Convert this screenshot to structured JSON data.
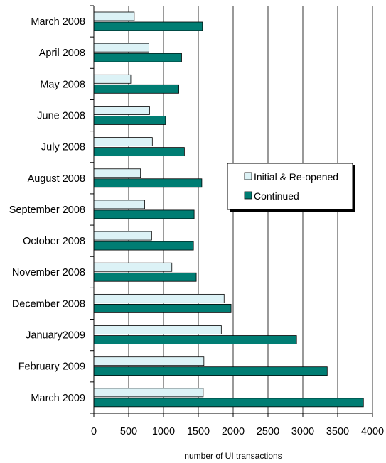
{
  "chart_data": {
    "type": "bar",
    "orientation": "horizontal",
    "categories": [
      "March 2008",
      "April 2008",
      "May 2008",
      "June 2008",
      "July 2008",
      "August 2008",
      "September 2008",
      "October 2008",
      "November 2008",
      "December 2008",
      "January2009",
      "February 2009",
      "March 2009"
    ],
    "series": [
      {
        "name": "Initial & Re-opened",
        "color": "#dcf2f6",
        "values": [
          580,
          790,
          530,
          800,
          840,
          670,
          730,
          830,
          1120,
          1870,
          1830,
          1580,
          1570
        ]
      },
      {
        "name": "Continued",
        "color": "#007d73",
        "values": [
          1560,
          1260,
          1220,
          1030,
          1300,
          1550,
          1440,
          1430,
          1470,
          1970,
          2910,
          3350,
          3870
        ]
      }
    ],
    "xlabel": "number of UI transactions",
    "xlim": [
      0,
      4000
    ],
    "xticks": [
      0,
      500,
      1000,
      1500,
      2000,
      2500,
      3000,
      3500,
      4000
    ],
    "grid": "vertical",
    "legend": "center-right"
  }
}
